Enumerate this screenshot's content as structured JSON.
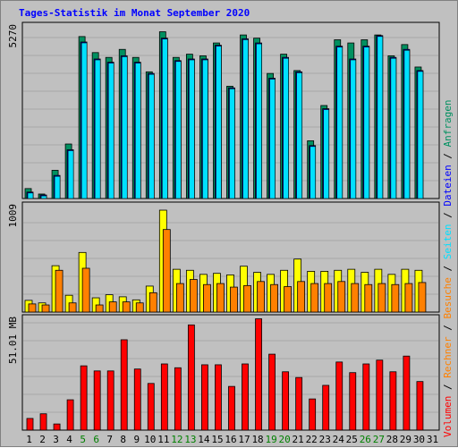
{
  "chart_data": {
    "title": "Tages-Statistik im Monat September 2020",
    "type": "bar",
    "categories": [
      "1",
      "2",
      "3",
      "4",
      "5",
      "6",
      "7",
      "8",
      "9",
      "10",
      "11",
      "12",
      "13",
      "14",
      "15",
      "16",
      "17",
      "18",
      "19",
      "20",
      "21",
      "22",
      "23",
      "24",
      "25",
      "26",
      "27",
      "28",
      "29",
      "30",
      "31"
    ],
    "weekend_days": [
      "5",
      "6",
      "12",
      "13",
      "19",
      "20",
      "26",
      "27"
    ],
    "panels": [
      {
        "id": "anfragen",
        "ylabel": "5270",
        "ymax": 5270,
        "series": [
          {
            "name": "Anfragen",
            "color": "#009060",
            "values": [
              310,
              140,
              880,
              1700,
              5050,
              4550,
              4400,
              4650,
              4400,
              3950,
              5200,
              4400,
              4500,
              4450,
              4850,
              3500,
              5100,
              5000,
              3900,
              4500,
              3990,
              1800,
              2900,
              4950,
              4850,
              4950,
              5100,
              4450,
              4800,
              4100,
              0
            ]
          },
          {
            "name": "Dateien",
            "color": "#0000ff",
            "values": [
              200,
              110,
              720,
              1520,
              4880,
              4350,
              4250,
              4450,
              4250,
              3900,
              5000,
              4300,
              4350,
              4350,
              4780,
              3450,
              4980,
              4850,
              3750,
              4400,
              3950,
              1650,
              2800,
              4750,
              4350,
              4750,
              5080,
              4400,
              4650,
              3990,
              0
            ]
          },
          {
            "name": "Seiten",
            "color": "#00e0ff",
            "values": [
              200,
              110,
              720,
              1520,
              4880,
              4350,
              4250,
              4450,
              4250,
              3900,
              5000,
              4300,
              4350,
              4350,
              4780,
              3450,
              4980,
              4850,
              3750,
              4400,
              3950,
              1650,
              2800,
              4750,
              4350,
              4750,
              5080,
              4400,
              4650,
              3990,
              0
            ]
          }
        ]
      },
      {
        "id": "besuche",
        "ylabel": "1009",
        "ymax": 1009,
        "series": [
          {
            "name": "Seiten",
            "color": "#ffff00",
            "values": [
              115,
              90,
              455,
              165,
              585,
              140,
              170,
              150,
              120,
              255,
              1000,
              420,
              410,
              370,
              380,
              365,
              450,
              390,
              370,
              410,
              520,
              400,
              400,
              410,
              420,
              390,
              420,
              370,
              420,
              410,
              0
            ]
          },
          {
            "name": "Besuche",
            "color": "#ff8000",
            "values": [
              80,
              70,
              410,
              90,
              430,
              70,
              100,
              100,
              90,
              190,
              810,
              280,
              320,
              270,
              280,
              245,
              260,
              300,
              270,
              250,
              300,
              280,
              280,
              300,
              280,
              270,
              280,
              270,
              280,
              290,
              0
            ]
          }
        ]
      },
      {
        "id": "volumen",
        "ylabel": "51.01 MB",
        "ymax": 51.01,
        "series": [
          {
            "name": "Volumen",
            "color": "#ff0000",
            "values": [
              5.5,
              7.7,
              2.9,
              14.3,
              30.3,
              27.9,
              27.9,
              42.6,
              28.8,
              22.0,
              31.2,
              29.4,
              49.6,
              30.8,
              30.8,
              20.6,
              31.2,
              52.5,
              35.8,
              27.5,
              24.8,
              14.7,
              21.1,
              32.1,
              27.1,
              31.2,
              33.0,
              27.5,
              34.9,
              22.9,
              0
            ]
          }
        ]
      }
    ]
  },
  "legend": [
    {
      "text": "Volumen",
      "color": "#ff0000"
    },
    {
      "text": " / ",
      "color": "#000000"
    },
    {
      "text": "Rechner",
      "color": "#ff8000"
    },
    {
      "text": " / ",
      "color": "#000000"
    },
    {
      "text": "Besuche",
      "color": "#ff8000"
    },
    {
      "text": " / ",
      "color": "#000000"
    },
    {
      "text": "Seiten",
      "color": "#00e0ff"
    },
    {
      "text": " / ",
      "color": "#000000"
    },
    {
      "text": "Dateien",
      "color": "#0000ff"
    },
    {
      "text": " / ",
      "color": "#000000"
    },
    {
      "text": "Anfragen",
      "color": "#009060"
    }
  ],
  "colors": {
    "weekday_label": "#000000",
    "weekend_label": "#008000",
    "grid": "#a8a8a8",
    "plot_bg": "#c0c0c0"
  }
}
